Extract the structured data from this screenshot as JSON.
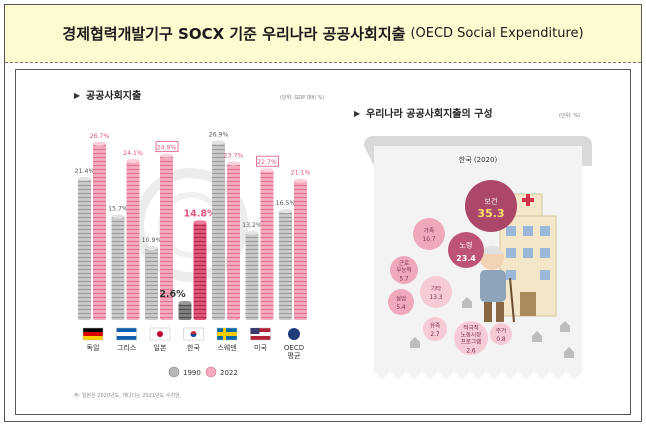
{
  "header": {
    "title_main": "경제협력개발기구 SOCX 기준 우리나라 공공사회지출",
    "title_sub": "(OECD Social Expenditure)"
  },
  "left_chart": {
    "section_title": "공공사회지출",
    "unit": "(단위: GDP 대비 %)",
    "footnote": "주: 일본은 2020년도, 캐나다는 2021년도 수치임.",
    "legend": [
      {
        "label": "1990",
        "color": "#b7b7b7"
      },
      {
        "label": "2022",
        "color": "#ef8aa6"
      }
    ]
  },
  "chart_data": [
    {
      "type": "bar",
      "categories": [
        "독일",
        "그리스",
        "일본",
        "한국",
        "스웨덴",
        "미국",
        "OECD 평균"
      ],
      "series": [
        {
          "name": "1990",
          "values": [
            21.4,
            15.7,
            10.9,
            2.6,
            26.9,
            13.2,
            16.5
          ],
          "color": "#b7b7b7"
        },
        {
          "name": "2022",
          "values": [
            26.7,
            24.1,
            24.9,
            14.8,
            23.7,
            22.7,
            21.1
          ],
          "color": "#ef8aa6"
        }
      ],
      "ylim": [
        0,
        30
      ],
      "boxed_labels": [
        "24.9%",
        "22.7%"
      ],
      "highlight_category": "한국"
    },
    {
      "type": "bubble",
      "title": "우리나라 공공사회지출의 구성",
      "unit": "(단위: %)",
      "subtitle": "한국 (2020)",
      "items": [
        {
          "label": "보건",
          "value": 35.3
        },
        {
          "label": "노령",
          "value": 23.4
        },
        {
          "label": "가족",
          "value": 10.7
        },
        {
          "label": "근로 무능력",
          "value": 5.7
        },
        {
          "label": "기타",
          "value": 13.3
        },
        {
          "label": "실업",
          "value": 5.4
        },
        {
          "label": "유족",
          "value": 2.7
        },
        {
          "label": "적극적 노동시장 프로그램",
          "value": 2.6
        },
        {
          "label": "주거",
          "value": 0.8
        }
      ]
    }
  ]
}
